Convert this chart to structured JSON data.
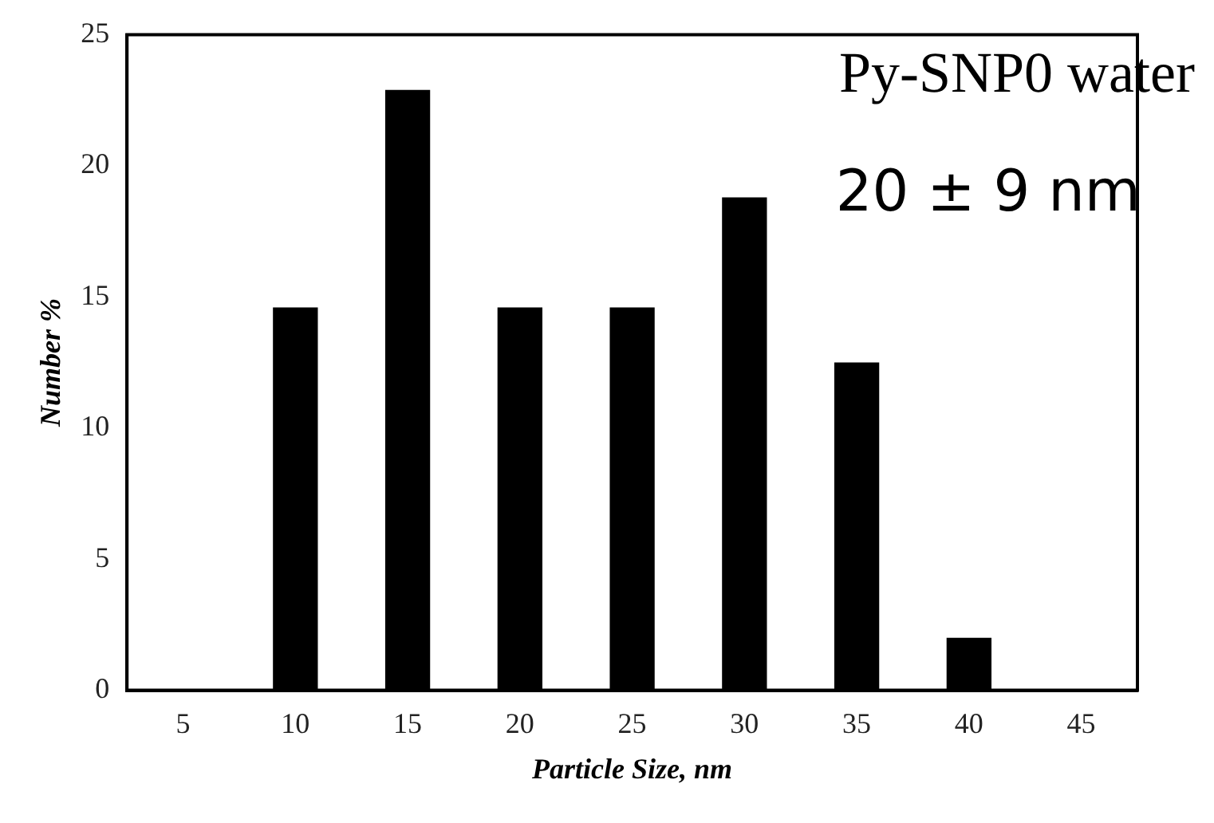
{
  "chart_data": {
    "type": "bar",
    "xlabel": "Particle Size, nm",
    "ylabel": "Number %",
    "categories": [
      "5",
      "10",
      "15",
      "20",
      "25",
      "30",
      "35",
      "40",
      "45"
    ],
    "values": [
      0,
      14.6,
      22.9,
      14.6,
      14.6,
      18.8,
      12.5,
      2.0,
      0
    ],
    "color": "#000000",
    "ylim": [
      0,
      25
    ],
    "yticks": [
      0,
      5,
      10,
      15,
      20,
      25
    ],
    "grid": false,
    "legend": false,
    "annotations": [
      "Py-SNP0 water",
      "20 ± 9 nm"
    ]
  }
}
